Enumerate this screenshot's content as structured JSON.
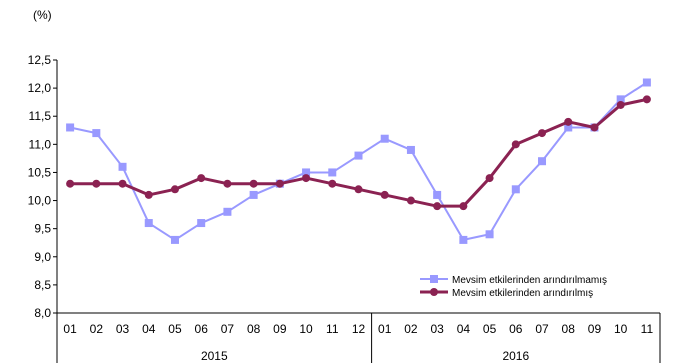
{
  "unit_label": "(%)",
  "chart_data": {
    "type": "line",
    "title": "",
    "xlabel": "",
    "ylabel": "(%)",
    "ylim": [
      8.0,
      12.5
    ],
    "ystep": 0.5,
    "yticks": [
      "8,0",
      "8,5",
      "9,0",
      "9,5",
      "10,0",
      "10,5",
      "11,0",
      "11,5",
      "12,0",
      "12,5"
    ],
    "categories": [
      "01",
      "02",
      "03",
      "04",
      "05",
      "06",
      "07",
      "08",
      "09",
      "10",
      "11",
      "12",
      "01",
      "02",
      "03",
      "04",
      "05",
      "06",
      "07",
      "08",
      "09",
      "10",
      "11"
    ],
    "year_groups": [
      {
        "label": "2015",
        "count": 12
      },
      {
        "label": "2016",
        "count": 11
      }
    ],
    "legend_position": "bottom-right",
    "series": [
      {
        "name": "Mevsim etkilerinden arındırılmamış",
        "color": "#9999ff",
        "marker": "square",
        "values": [
          11.3,
          11.2,
          10.6,
          9.6,
          9.3,
          9.6,
          9.8,
          10.1,
          10.3,
          10.5,
          10.5,
          10.8,
          11.1,
          10.9,
          10.1,
          9.3,
          9.4,
          10.2,
          10.7,
          11.3,
          11.3,
          11.8,
          12.1
        ]
      },
      {
        "name": "Mevsim etkilerinden arındırılmış",
        "color": "#8b2252",
        "marker": "circle",
        "values": [
          10.3,
          10.3,
          10.3,
          10.1,
          10.2,
          10.4,
          10.3,
          10.3,
          10.3,
          10.4,
          10.3,
          10.2,
          10.1,
          10.0,
          9.9,
          9.9,
          10.4,
          11.0,
          11.2,
          11.4,
          11.3,
          11.7,
          11.8
        ]
      }
    ]
  }
}
